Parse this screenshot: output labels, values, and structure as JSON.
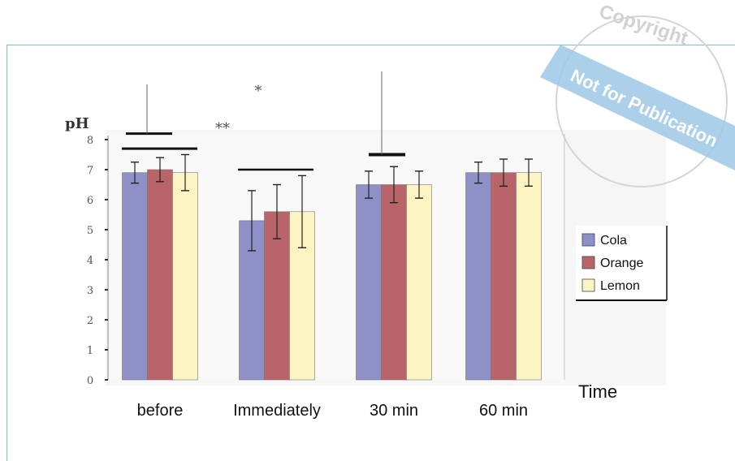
{
  "chart_data": {
    "type": "bar",
    "ylabel": "pH",
    "xlabel": "Time",
    "ylim": [
      0,
      8
    ],
    "yticks": [
      "0",
      "1",
      "2",
      "3",
      "4",
      "5",
      "6",
      "7",
      "8"
    ],
    "categories": [
      "before",
      "Immediately",
      "30 min",
      "60 min"
    ],
    "series": [
      {
        "name": "Cola",
        "color": "#8f90c8",
        "values": [
          6.9,
          5.3,
          6.5,
          6.9
        ],
        "errors": [
          0.35,
          1.0,
          0.45,
          0.35
        ]
      },
      {
        "name": "Orange",
        "color": "#b86468",
        "values": [
          7.0,
          5.6,
          6.5,
          6.9
        ],
        "errors": [
          0.4,
          0.9,
          0.6,
          0.45
        ]
      },
      {
        "name": "Lemon",
        "color": "#fdf4c4",
        "values": [
          6.9,
          5.6,
          6.5,
          6.9
        ],
        "errors": [
          0.6,
          1.2,
          0.45,
          0.45
        ]
      }
    ],
    "significance": [
      {
        "label": "**",
        "span": "before",
        "y": 7.7
      },
      {
        "label": "*",
        "span": "Immediately",
        "y": 8.3
      }
    ],
    "legend_position": "right"
  },
  "watermark": {
    "line1": "Copyright",
    "line2": "Not for Publication"
  }
}
